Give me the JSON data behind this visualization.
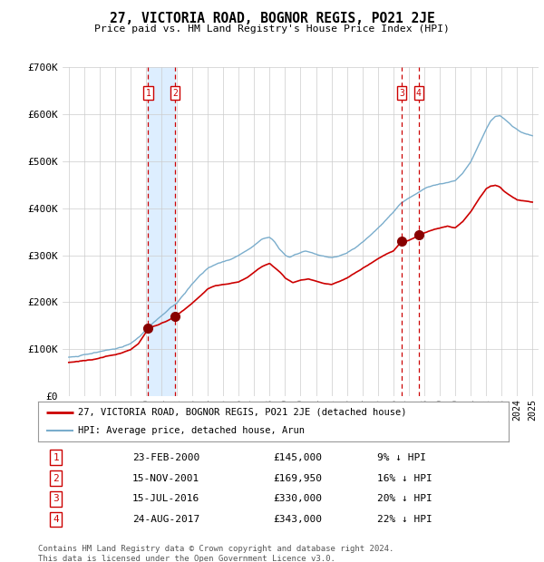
{
  "title": "27, VICTORIA ROAD, BOGNOR REGIS, PO21 2JE",
  "subtitle": "Price paid vs. HM Land Registry's House Price Index (HPI)",
  "sale_dates": [
    "2000-02-23",
    "2001-11-15",
    "2016-07-15",
    "2017-08-24"
  ],
  "sale_prices": [
    145000,
    169950,
    330000,
    343000
  ],
  "sale_labels": [
    "1",
    "2",
    "3",
    "4"
  ],
  "sale_hpi_diff": [
    "9% ↓ HPI",
    "16% ↓ HPI",
    "20% ↓ HPI",
    "22% ↓ HPI"
  ],
  "sale_dates_display": [
    "23-FEB-2000",
    "15-NOV-2001",
    "15-JUL-2016",
    "24-AUG-2017"
  ],
  "sale_prices_display": [
    "£145,000",
    "£169,950",
    "£330,000",
    "£343,000"
  ],
  "line_color_red": "#cc0000",
  "line_color_blue": "#7aadcc",
  "marker_color_red": "#880000",
  "dashed_color": "#cc0000",
  "shade_color": "#ddeeff",
  "grid_color": "#cccccc",
  "background_color": "#ffffff",
  "ylim": [
    0,
    700000
  ],
  "yticks": [
    0,
    100000,
    200000,
    300000,
    400000,
    500000,
    600000,
    700000
  ],
  "ytick_labels": [
    "£0",
    "£100K",
    "£200K",
    "£300K",
    "£400K",
    "£500K",
    "£600K",
    "£700K"
  ],
  "xlim_start": 1994.6,
  "xlim_end": 2025.4,
  "legend_line1": "27, VICTORIA ROAD, BOGNOR REGIS, PO21 2JE (detached house)",
  "legend_line2": "HPI: Average price, detached house, Arun",
  "footer": "Contains HM Land Registry data © Crown copyright and database right 2024.\nThis data is licensed under the Open Government Licence v3.0.",
  "box_label_color": "#cc0000",
  "box_border_color": "#cc0000",
  "sale_years": [
    2000.14,
    2001.88,
    2016.54,
    2017.65
  ]
}
